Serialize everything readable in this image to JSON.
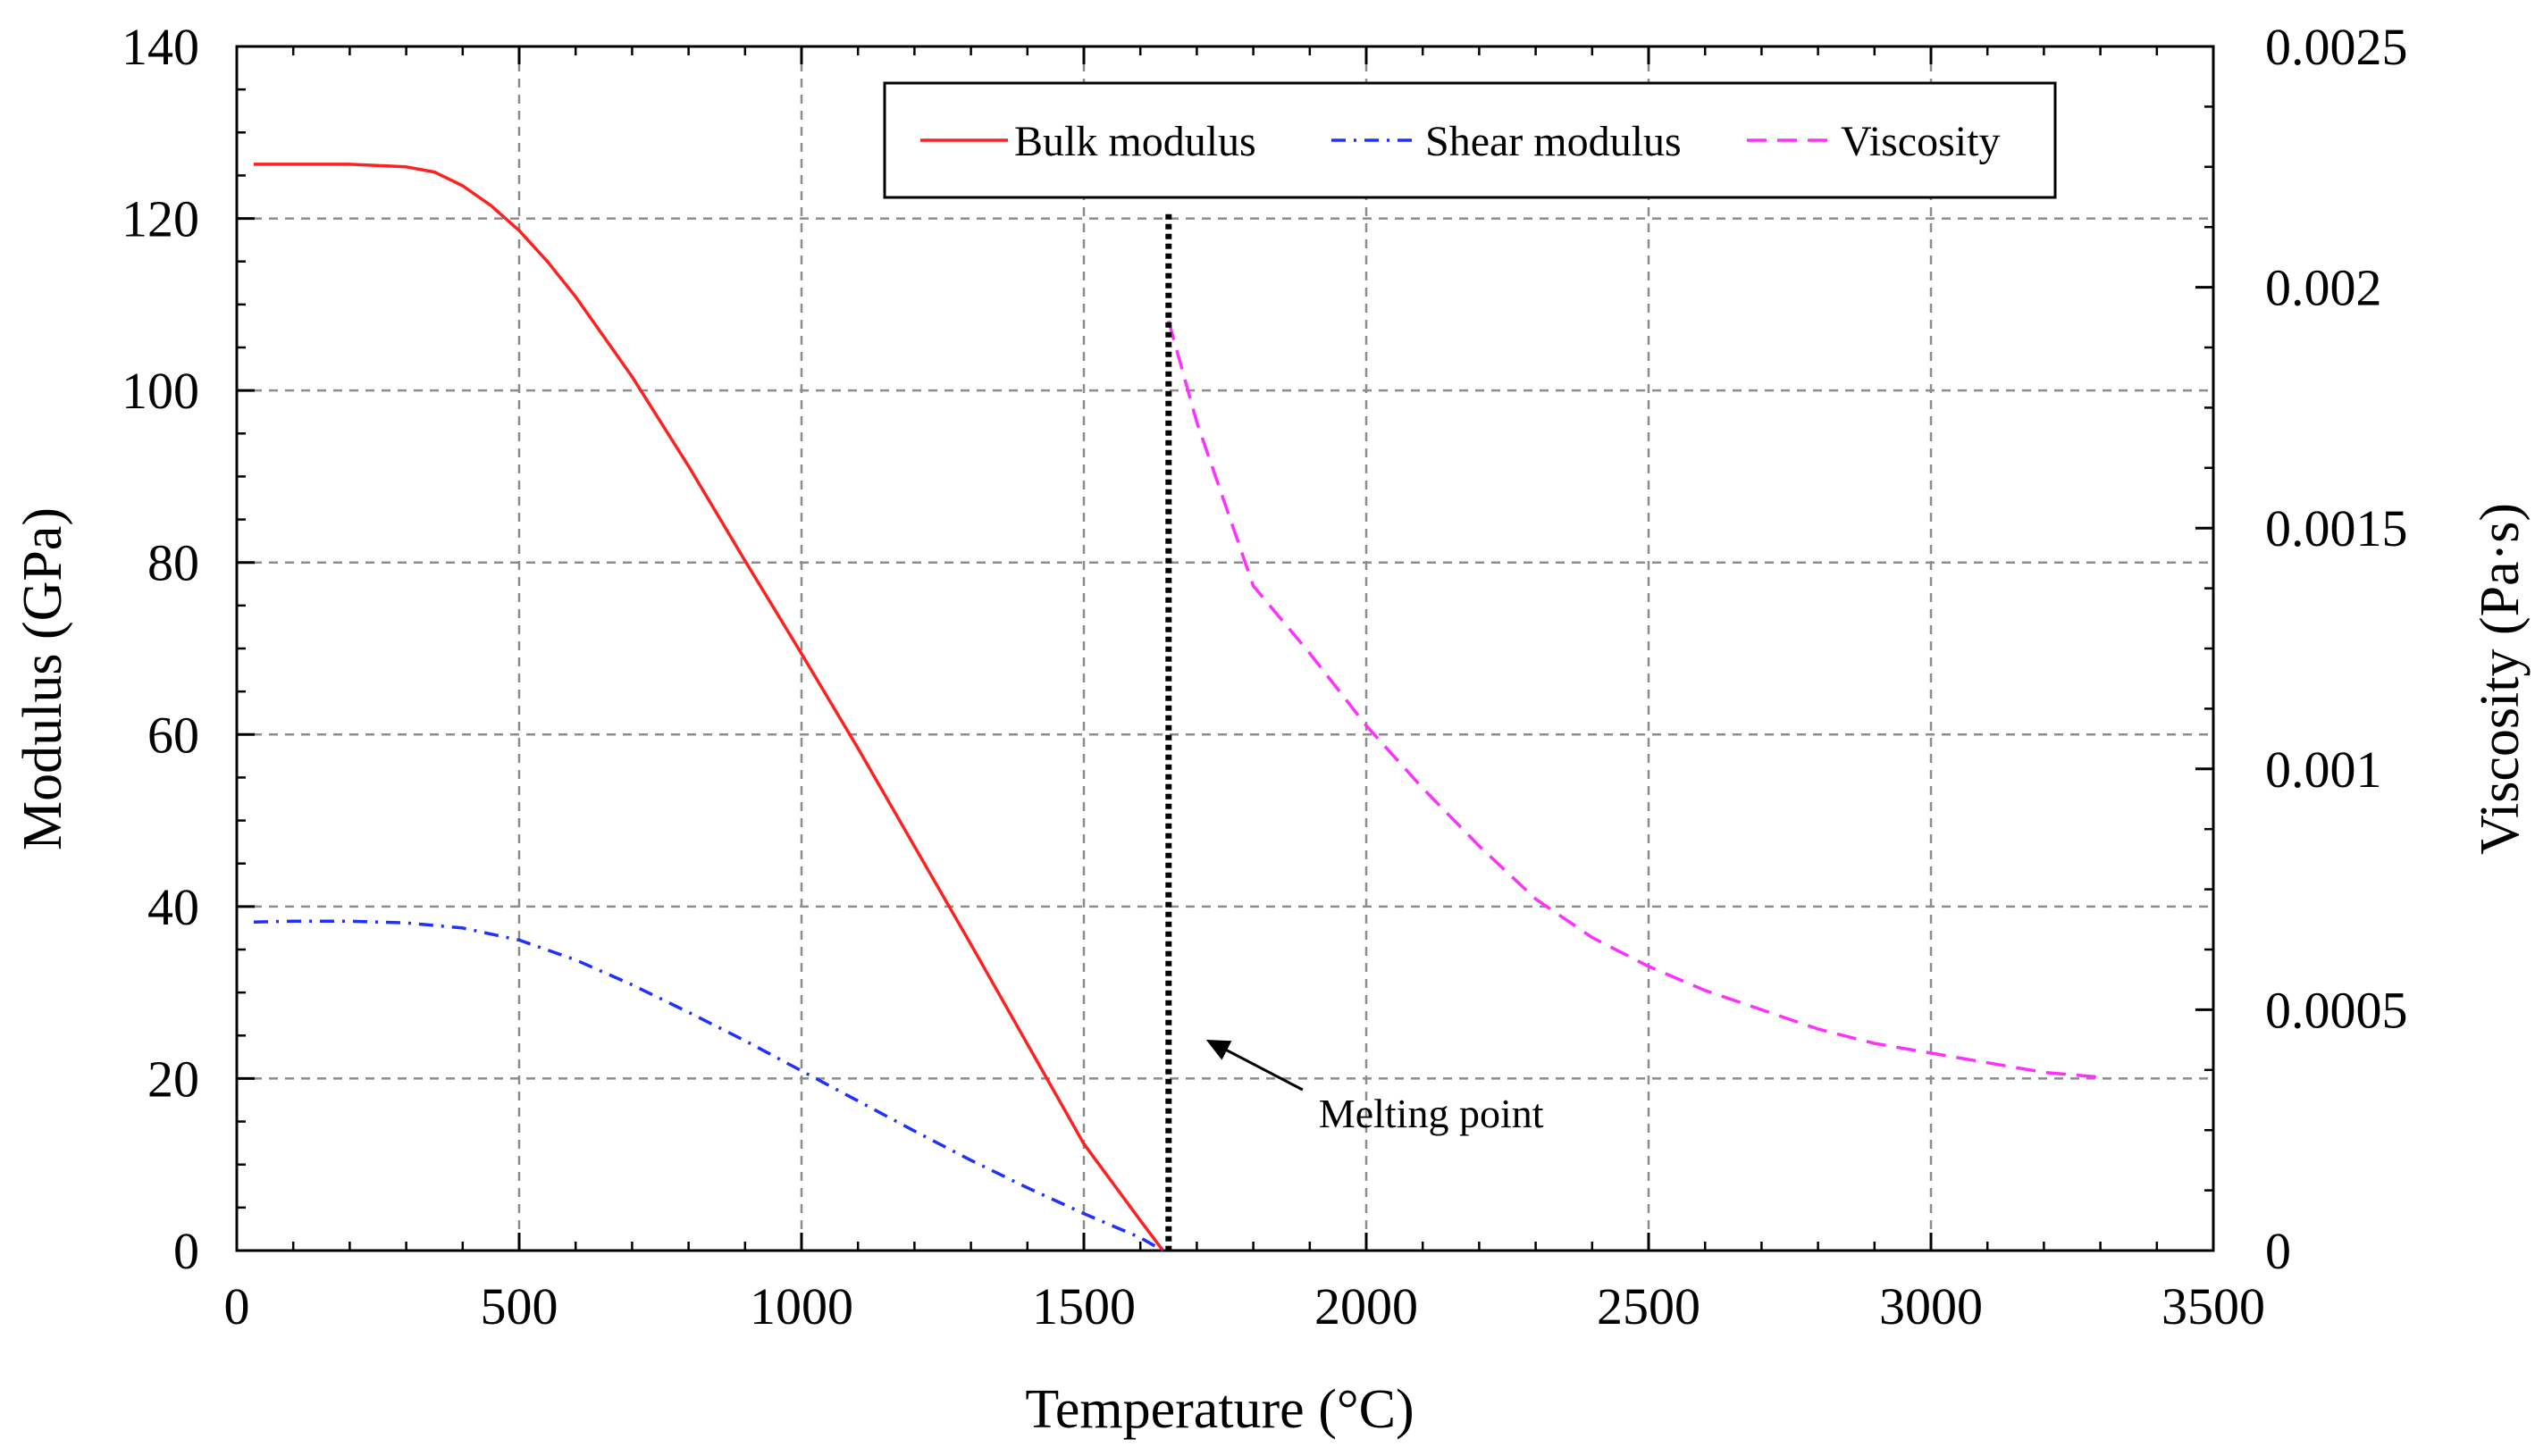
{
  "chart_data": {
    "type": "line",
    "title": "",
    "xlabel": "Temperature (°C)",
    "ylabel": "Modulus (GPa)",
    "y2label": "Viscosity (Pa·s)",
    "xlim": [
      0,
      3500
    ],
    "ylim": [
      0,
      140
    ],
    "y2lim": [
      0,
      0.0025
    ],
    "x_ticks": [
      "0",
      "500",
      "1000",
      "1500",
      "2000",
      "2500",
      "3000",
      "3500"
    ],
    "y_ticks": [
      "0",
      "20",
      "40",
      "60",
      "80",
      "100",
      "120",
      "140"
    ],
    "y2_ticks": [
      "0",
      "0.0005",
      "0.001",
      "0.0015",
      "0.002",
      "0.0025"
    ],
    "grid": true,
    "legend_position": "top-right",
    "series": [
      {
        "name": "Bulk modulus",
        "axis": "left",
        "color": "#ff2020",
        "style": "solid",
        "x": [
          30,
          100,
          200,
          300,
          350,
          400,
          450,
          500,
          550,
          600,
          700,
          800,
          900,
          1000,
          1100,
          1200,
          1300,
          1400,
          1500,
          1600,
          1640
        ],
        "y": [
          126.3,
          126.3,
          126.3,
          126.0,
          125.4,
          123.8,
          121.5,
          118.6,
          115.0,
          110.9,
          101.6,
          91.2,
          80.2,
          69.4,
          58.4,
          47.0,
          35.6,
          24.0,
          12.4,
          3.5,
          0
        ]
      },
      {
        "name": "Shear modulus",
        "axis": "left",
        "color": "#2030ff",
        "style": "dashdot",
        "x": [
          30,
          100,
          200,
          300,
          400,
          500,
          600,
          700,
          800,
          900,
          1000,
          1100,
          1200,
          1300,
          1400,
          1500,
          1600,
          1640
        ],
        "y": [
          38.2,
          38.3,
          38.3,
          38.1,
          37.5,
          36.1,
          33.8,
          30.9,
          27.7,
          24.4,
          20.9,
          17.4,
          13.9,
          10.5,
          7.3,
          4.3,
          1.5,
          0
        ]
      },
      {
        "name": "Viscosity",
        "axis": "right",
        "color": "#ff30ff",
        "style": "dashed",
        "x": [
          1650,
          1700,
          1800,
          1900,
          2000,
          2100,
          2200,
          2300,
          2400,
          2500,
          2600,
          2700,
          2800,
          2900,
          3000,
          3100,
          3200,
          3300
        ],
        "y": [
          0.00193,
          0.00172,
          0.00138,
          0.00124,
          0.00109,
          0.00096,
          0.00084,
          0.00073,
          0.00065,
          0.00059,
          0.00054,
          0.0005,
          0.00046,
          0.00043,
          0.00041,
          0.00039,
          0.00037,
          0.00036
        ]
      }
    ],
    "annotations": [
      {
        "text": "Melting point",
        "x": 1650
      }
    ]
  }
}
